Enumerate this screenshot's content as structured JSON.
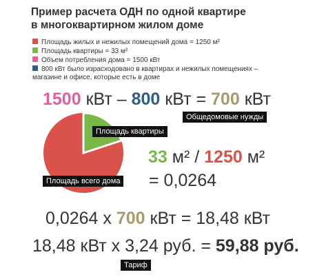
{
  "header": {
    "title_lines": [
      "Пример расчета ОДН по одной квартире",
      "в многоквартирном жилом доме"
    ]
  },
  "legend": [
    {
      "text": "Площадь жилых и нежилых помещений дома = 1250 м²"
    },
    {
      "text": "Площадь квартиры = 33 м²"
    },
    {
      "text": "Объем потребления дома = 1500 кВт"
    },
    {
      "text": "800 кВт было израсходовано в квартирах и нежилых помещениях – магазине и офисе, которые есть в доме"
    }
  ],
  "equation1": {
    "a": "1500",
    "a_unit": "кВт –",
    "b": "800",
    "b_unit": "кВт =",
    "c": "700",
    "c_unit": "кВт",
    "note": "Общедомовые нужды"
  },
  "pie": {
    "apartment_label": "Площадь квартиры",
    "house_label": "Площадь всего дома"
  },
  "equation2": {
    "a": "33",
    "a_unit": "м²",
    "op": "/",
    "b": "1250",
    "b_unit": "м²",
    "result": "= 0,0264"
  },
  "equation3": {
    "a": "0,0264 x",
    "b": "700",
    "rest": "кВт = 18,48 кВт"
  },
  "equation4": {
    "left": "18,48 кВт x 3,24 руб. =",
    "result": "59,88 руб.",
    "note": "Тариф"
  }
}
